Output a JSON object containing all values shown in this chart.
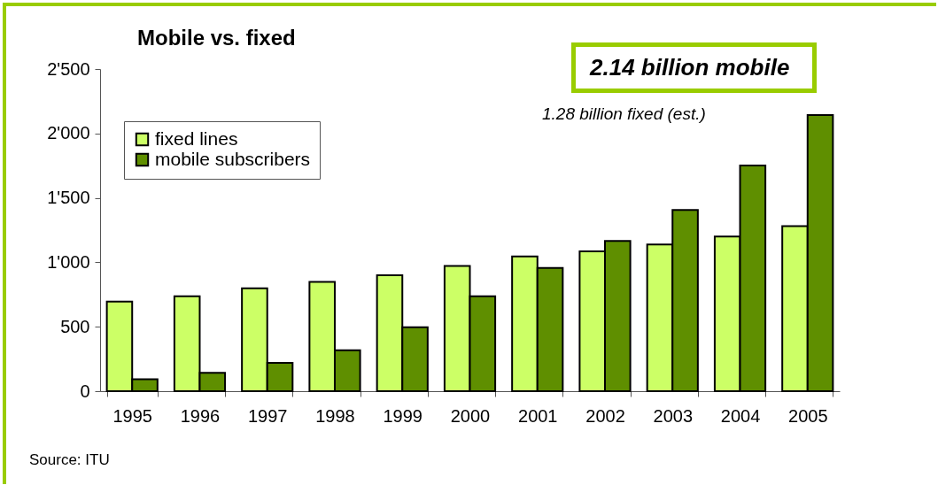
{
  "chart_data": {
    "type": "bar",
    "title": "Mobile vs. fixed",
    "categories": [
      "1995",
      "1996",
      "1997",
      "1998",
      "1999",
      "2000",
      "2001",
      "2002",
      "2003",
      "2004",
      "2005"
    ],
    "series": [
      {
        "name": "fixed lines",
        "color": "#ccff66",
        "values": [
          695,
          736,
          798,
          848,
          899,
          972,
          1046,
          1085,
          1138,
          1200,
          1281
        ]
      },
      {
        "name": "mobile subscribers",
        "color": "#5f8f00",
        "values": [
          92,
          143,
          219,
          317,
          497,
          736,
          956,
          1166,
          1407,
          1752,
          2143
        ]
      }
    ],
    "ylim": [
      0,
      2500
    ],
    "yticks": [
      0,
      {
        "value": 500,
        "label": "500"
      },
      {
        "value": 1000,
        "label": "1'000"
      },
      {
        "value": 1500,
        "label": "1'500"
      },
      {
        "value": 2000,
        "label": "2'000"
      },
      {
        "value": 2500,
        "label": "2'500"
      }
    ],
    "legend": "top left",
    "grid": false,
    "annotations": [
      "2.14 billion mobile",
      "1.28 billion fixed (est.)",
      "Source: ITU"
    ]
  }
}
